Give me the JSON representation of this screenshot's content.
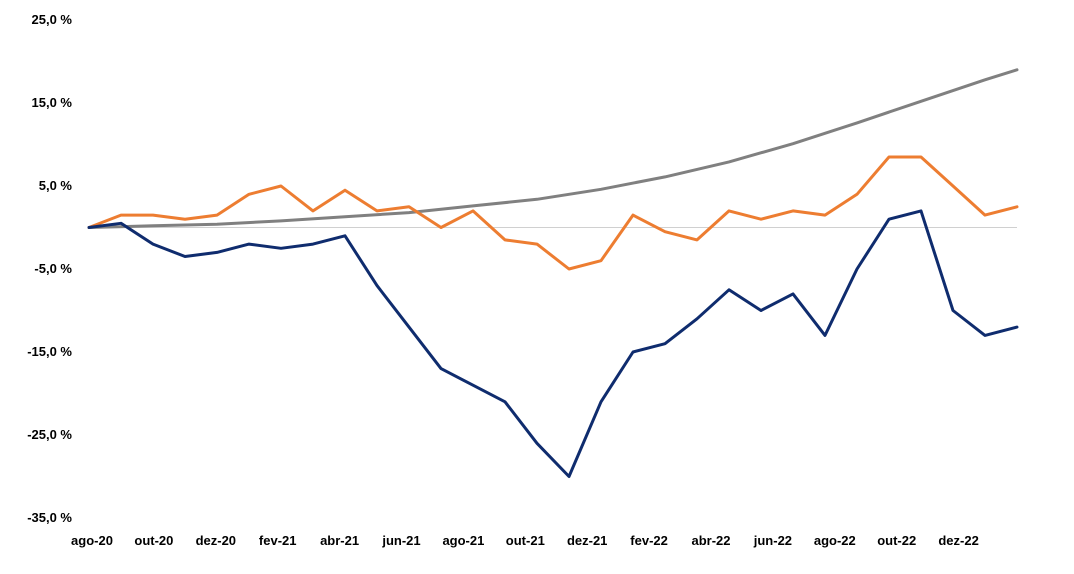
{
  "chart_data": {
    "type": "line",
    "title": "",
    "xlabel": "",
    "ylabel": "",
    "ylim": [
      -35,
      25
    ],
    "y_ticks": [
      25,
      15,
      5,
      -5,
      -15,
      -25,
      -35
    ],
    "y_tick_labels": [
      "25,0 %",
      "15,0 %",
      "5,0 %",
      "-5,0 %",
      "-15,0 %",
      "-25,0 %",
      "-35,0 %"
    ],
    "x_tick_labels": [
      "ago-20",
      "out-20",
      "dez-20",
      "fev-21",
      "abr-21",
      "jun-21",
      "ago-21",
      "out-21",
      "dez-21",
      "fev-22",
      "abr-22",
      "jun-22",
      "ago-22",
      "out-22",
      "dez-22"
    ],
    "x_range": [
      "2020-08",
      "2023-01"
    ],
    "grid": false,
    "legend": "none",
    "zero_line_color": "#d0d0d0",
    "series": [
      {
        "color": "#808080",
        "x": [
          "2020-08",
          "2020-10",
          "2020-12",
          "2021-02",
          "2021-04",
          "2021-06",
          "2021-08",
          "2021-10",
          "2021-12",
          "2022-02",
          "2022-04",
          "2022-06",
          "2022-08",
          "2022-10",
          "2022-12",
          "2023-01"
        ],
        "values": [
          0.0,
          0.2,
          0.4,
          0.8,
          1.3,
          1.8,
          2.6,
          3.4,
          4.6,
          6.1,
          7.9,
          10.1,
          12.6,
          15.2,
          17.8,
          19.0
        ]
      },
      {
        "color": "#ed7d31",
        "x": [
          "2020-08",
          "2020-09",
          "2020-10",
          "2020-11",
          "2020-12",
          "2021-01",
          "2021-02",
          "2021-03",
          "2021-04",
          "2021-05",
          "2021-06",
          "2021-07",
          "2021-08",
          "2021-09",
          "2021-10",
          "2021-11",
          "2021-12",
          "2022-01",
          "2022-02",
          "2022-03",
          "2022-04",
          "2022-05",
          "2022-06",
          "2022-07",
          "2022-08",
          "2022-09",
          "2022-10",
          "2022-11",
          "2022-12",
          "2023-01"
        ],
        "values": [
          0.0,
          1.5,
          1.5,
          1.0,
          1.5,
          4.0,
          5.0,
          2.0,
          4.5,
          2.0,
          2.5,
          0.0,
          2.0,
          -1.5,
          -2.0,
          -5.0,
          -4.0,
          1.5,
          -0.5,
          -1.5,
          2.0,
          1.0,
          2.0,
          1.5,
          4.0,
          8.5,
          8.5,
          5.0,
          1.5,
          2.5
        ]
      },
      {
        "color": "#0f2c6e",
        "x": [
          "2020-08",
          "2020-09",
          "2020-10",
          "2020-11",
          "2020-12",
          "2021-01",
          "2021-02",
          "2021-03",
          "2021-04",
          "2021-05",
          "2021-06",
          "2021-07",
          "2021-08",
          "2021-09",
          "2021-10",
          "2021-11",
          "2021-12",
          "2022-01",
          "2022-02",
          "2022-03",
          "2022-04",
          "2022-05",
          "2022-06",
          "2022-07",
          "2022-08",
          "2022-09",
          "2022-10",
          "2022-11",
          "2022-12",
          "2023-01"
        ],
        "values": [
          0.0,
          0.5,
          -2.0,
          -3.5,
          -3.0,
          -2.0,
          -2.5,
          -2.0,
          -1.0,
          -7.0,
          -12.0,
          -17.0,
          -19.0,
          -21.0,
          -26.0,
          -30.0,
          -21.0,
          -15.0,
          -14.0,
          -11.0,
          -7.5,
          -10.0,
          -8.0,
          -13.0,
          -5.0,
          1.0,
          2.0,
          -10.0,
          -13.0,
          -12.0
        ]
      }
    ]
  }
}
